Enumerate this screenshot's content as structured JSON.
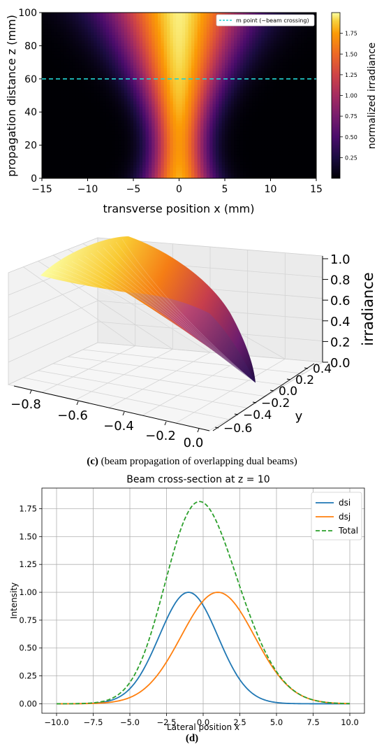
{
  "chart_data": [
    {
      "type": "heatmap",
      "panel": "top",
      "xlabel": "transverse position x (mm)",
      "ylabel": "propagation distance z (mm)",
      "xlim": [
        -15,
        15
      ],
      "ylim": [
        0,
        100
      ],
      "x_ticks": [
        -15,
        -10,
        -5,
        0,
        5,
        10,
        15
      ],
      "y_ticks": [
        0,
        20,
        40,
        60,
        80,
        100
      ],
      "colorbar": {
        "label": "normalized irradiance",
        "range": [
          0,
          2.0
        ],
        "ticks": [
          "0.25",
          "0.50",
          "0.75",
          "1.00",
          "1.25",
          "1.50",
          "1.75"
        ],
        "colormap": "inferno"
      },
      "beam": {
        "separation_mm": 2,
        "waist_mm": 2.6,
        "waist_z_mm": 20
      },
      "annotation": {
        "line_z": 60,
        "color": "#22d3d3",
        "style": "dashed",
        "legend": "m point (~beam crossing)",
        "legend_position": "top-right"
      }
    },
    {
      "type": "surface",
      "panel": "c",
      "zlabel": "irradiance",
      "ylabel": "y",
      "x_ticks": [
        "−0.8",
        "−0.6",
        "−0.4",
        "−0.2",
        "0.0"
      ],
      "y_ticks": [
        "−0.6",
        "−0.4",
        "−0.2",
        "0.0",
        "0.2",
        "0.4"
      ],
      "z_ticks": [
        "0.0",
        "0.2",
        "0.4",
        "0.6",
        "0.8",
        "1.0"
      ],
      "colormap": "inferno"
    },
    {
      "type": "line",
      "panel": "d",
      "title": "Beam cross-section at z = 10",
      "xlabel": "Lateral position x",
      "ylabel": "Intensity",
      "xlim": [
        -10,
        10
      ],
      "ylim": [
        0,
        1.85
      ],
      "x_ticks": [
        "−10.0",
        "−7.5",
        "−5.0",
        "−2.5",
        "0.0",
        "2.5",
        "5.0",
        "7.5",
        "10.0"
      ],
      "y_ticks": [
        "0.00",
        "0.25",
        "0.50",
        "0.75",
        "1.00",
        "1.25",
        "1.50",
        "1.75"
      ],
      "grid": true,
      "legend_position": "top-right",
      "series": [
        {
          "name": "dsi",
          "color": "#1f77b4",
          "dash": "solid",
          "center": -1.0,
          "amplitude": 1.0,
          "sigma": 2.0
        },
        {
          "name": "dsj",
          "color": "#ff7f0e",
          "dash": "solid",
          "center": 1.0,
          "amplitude": 1.0,
          "sigma": 2.5
        },
        {
          "name": "Total",
          "color": "#2ca02c",
          "dash": "dashed",
          "sum_of": [
            "dsi",
            "dsj"
          ]
        }
      ]
    }
  ],
  "captions": {
    "c_letter": "(c)",
    "c_text": " (beam propagation of overlapping dual beams)",
    "d_text": "(d)"
  }
}
